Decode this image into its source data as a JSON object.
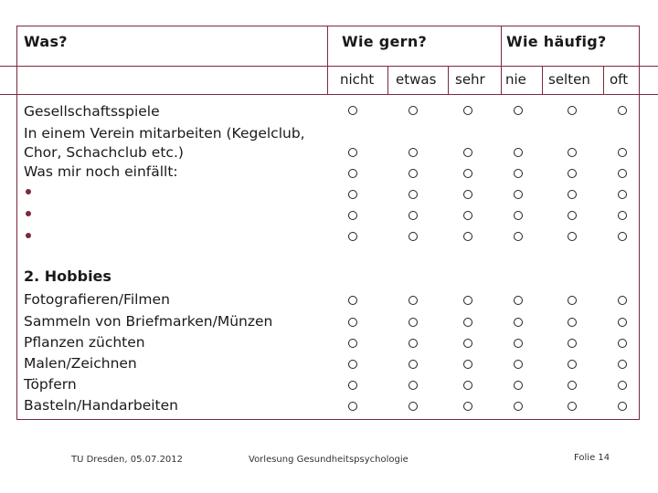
{
  "header": {
    "col_what": "Was?",
    "col_like": "Wie gern?",
    "col_freq": "Wie häufig?"
  },
  "scale": {
    "like": [
      "nicht",
      "etwas",
      "sehr"
    ],
    "freq": [
      "nie",
      "selten",
      "oft"
    ]
  },
  "section1": {
    "items": [
      "Gesellschaftsspiele",
      "In einem Verein mitarbeiten (Kegelclub,",
      "Chor, Schachclub etc.)",
      "Was mir noch einfällt:"
    ],
    "bullets": [
      "•",
      "•",
      "•"
    ]
  },
  "section2": {
    "title": "2. Hobbies",
    "items": [
      "Fotografieren/Filmen",
      "Sammeln von Briefmarken/Münzen",
      "Pflanzen züchten",
      "Malen/Zeichnen",
      "Töpfern",
      "Basteln/Handarbeiten"
    ]
  },
  "footer": {
    "left": "TU Dresden, 05.07.2012",
    "center": "Vorlesung Gesundheitspsychologie",
    "right": "Folie 14"
  },
  "colors": {
    "accent": "#7b2a3c"
  }
}
